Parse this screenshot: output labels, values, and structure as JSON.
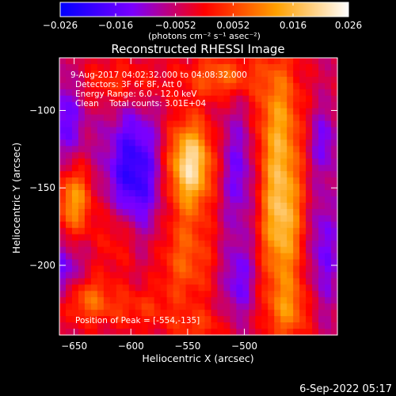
{
  "chart_data": {
    "type": "heatmap",
    "title": "Reconstructed RHESSI Image",
    "xlabel": "Heliocentric X (arcsec)",
    "ylabel": "Heliocentric Y (arcsec)",
    "xlim": [
      -663,
      -418
    ],
    "ylim": [
      -245,
      -66
    ],
    "x_ticks": [
      -650,
      -600,
      -550,
      -500
    ],
    "y_ticks": [
      -100,
      -150,
      -200
    ],
    "x_tick_labels": [
      "−650",
      "−600",
      "−550",
      "−500"
    ],
    "y_tick_labels": [
      "−100",
      "−150",
      "−200"
    ],
    "colorbar": {
      "min": -0.026,
      "max": 0.026,
      "ticks": [
        -0.026,
        -0.016,
        -0.0052,
        0.0052,
        0.016,
        0.026
      ],
      "tick_labels": [
        "−0.026",
        "−0.016",
        "−0.0052",
        "0.0052",
        "0.016",
        "0.026"
      ],
      "unit": "(photons cm⁻² s⁻¹ asec⁻²)",
      "colormap": [
        "#0000ff",
        "#7a00ff",
        "#ff0000",
        "#ffa000",
        "#ffffff"
      ]
    },
    "annotations": {
      "time_range": "9-Aug-2017 04:02:32.000 to 04:08:32.000",
      "detectors": "Detectors: 3F 6F 8F, Att 0",
      "energy": "Energy Range: 6.0 - 12.0 keV",
      "clean": "Clean    Total counts: 3.01E+04",
      "peak": "Position of Peak = [-554,-135]"
    },
    "peak": [
      -554,
      -135
    ],
    "features": [
      {
        "x": -548,
        "y": -135,
        "sx": 14,
        "sy": 20,
        "value": 0.026
      },
      {
        "x": -552,
        "y": -196,
        "sx": 18,
        "sy": 22,
        "value": 0.011
      },
      {
        "x": -610,
        "y": -180,
        "sx": 14,
        "sy": 18,
        "value": 0.01
      },
      {
        "x": -650,
        "y": -158,
        "sx": 11,
        "sy": 16,
        "value": 0.017
      },
      {
        "x": -640,
        "y": -222,
        "sx": 16,
        "sy": 11,
        "value": 0.012
      },
      {
        "x": -595,
        "y": -228,
        "sx": 22,
        "sy": 10,
        "value": 0.007
      },
      {
        "x": -470,
        "y": -110,
        "sx": 14,
        "sy": 35,
        "value": 0.016
      },
      {
        "x": -467,
        "y": -175,
        "sx": 13,
        "sy": 30,
        "value": 0.019
      },
      {
        "x": -462,
        "y": -230,
        "sx": 14,
        "sy": 15,
        "value": 0.012
      },
      {
        "x": -520,
        "y": -78,
        "sx": 22,
        "sy": 10,
        "value": 0.012
      },
      {
        "x": -610,
        "y": -82,
        "sx": 28,
        "sy": 11,
        "value": 0.008
      },
      {
        "x": -540,
        "y": -240,
        "sx": 18,
        "sy": 8,
        "value": 0.007
      },
      {
        "x": -598,
        "y": -143,
        "sx": 17,
        "sy": 30,
        "value": -0.018
      },
      {
        "x": -660,
        "y": -105,
        "sx": 14,
        "sy": 22,
        "value": -0.011
      },
      {
        "x": -660,
        "y": -205,
        "sx": 12,
        "sy": 14,
        "value": -0.011
      },
      {
        "x": -505,
        "y": -140,
        "sx": 11,
        "sy": 28,
        "value": -0.01
      },
      {
        "x": -505,
        "y": -210,
        "sx": 10,
        "sy": 18,
        "value": -0.01
      },
      {
        "x": -430,
        "y": -190,
        "sx": 9,
        "sy": 28,
        "value": -0.01
      },
      {
        "x": -430,
        "y": -120,
        "sx": 9,
        "sy": 15,
        "value": -0.009
      }
    ]
  },
  "footer": {
    "date": "6-Sep-2022 05:17"
  }
}
